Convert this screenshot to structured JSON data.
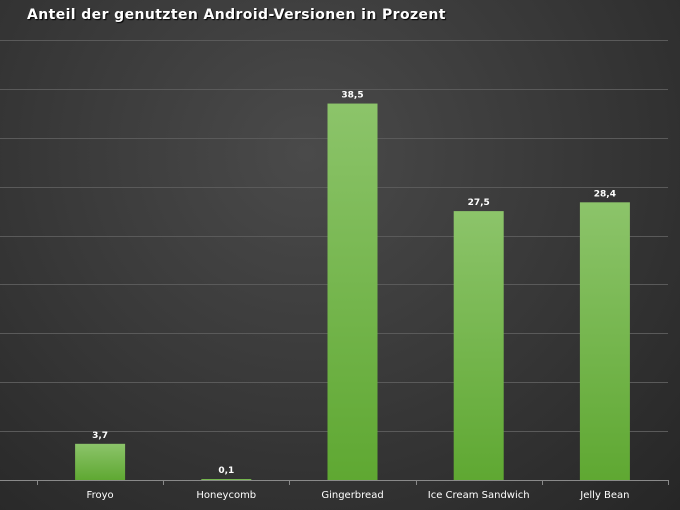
{
  "chart_data": {
    "type": "bar",
    "title": "Anteil der genutzten Android-Versionen  in Prozent",
    "categories": [
      "Froyo",
      "Honeycomb",
      "Gingerbread",
      "Ice Cream Sandwich",
      "Jelly Bean"
    ],
    "values": [
      3.7,
      0.1,
      38.5,
      27.5,
      28.4
    ],
    "data_labels": [
      "3,7",
      "0,1",
      "38,5",
      "27,5",
      "28,4"
    ],
    "xlabel": "",
    "ylabel": "",
    "ylim": [
      0,
      45
    ],
    "grid": true,
    "legend": "none",
    "colors": {
      "bar_top": "#8cc46a",
      "bar_bottom": "#5fa832"
    }
  }
}
